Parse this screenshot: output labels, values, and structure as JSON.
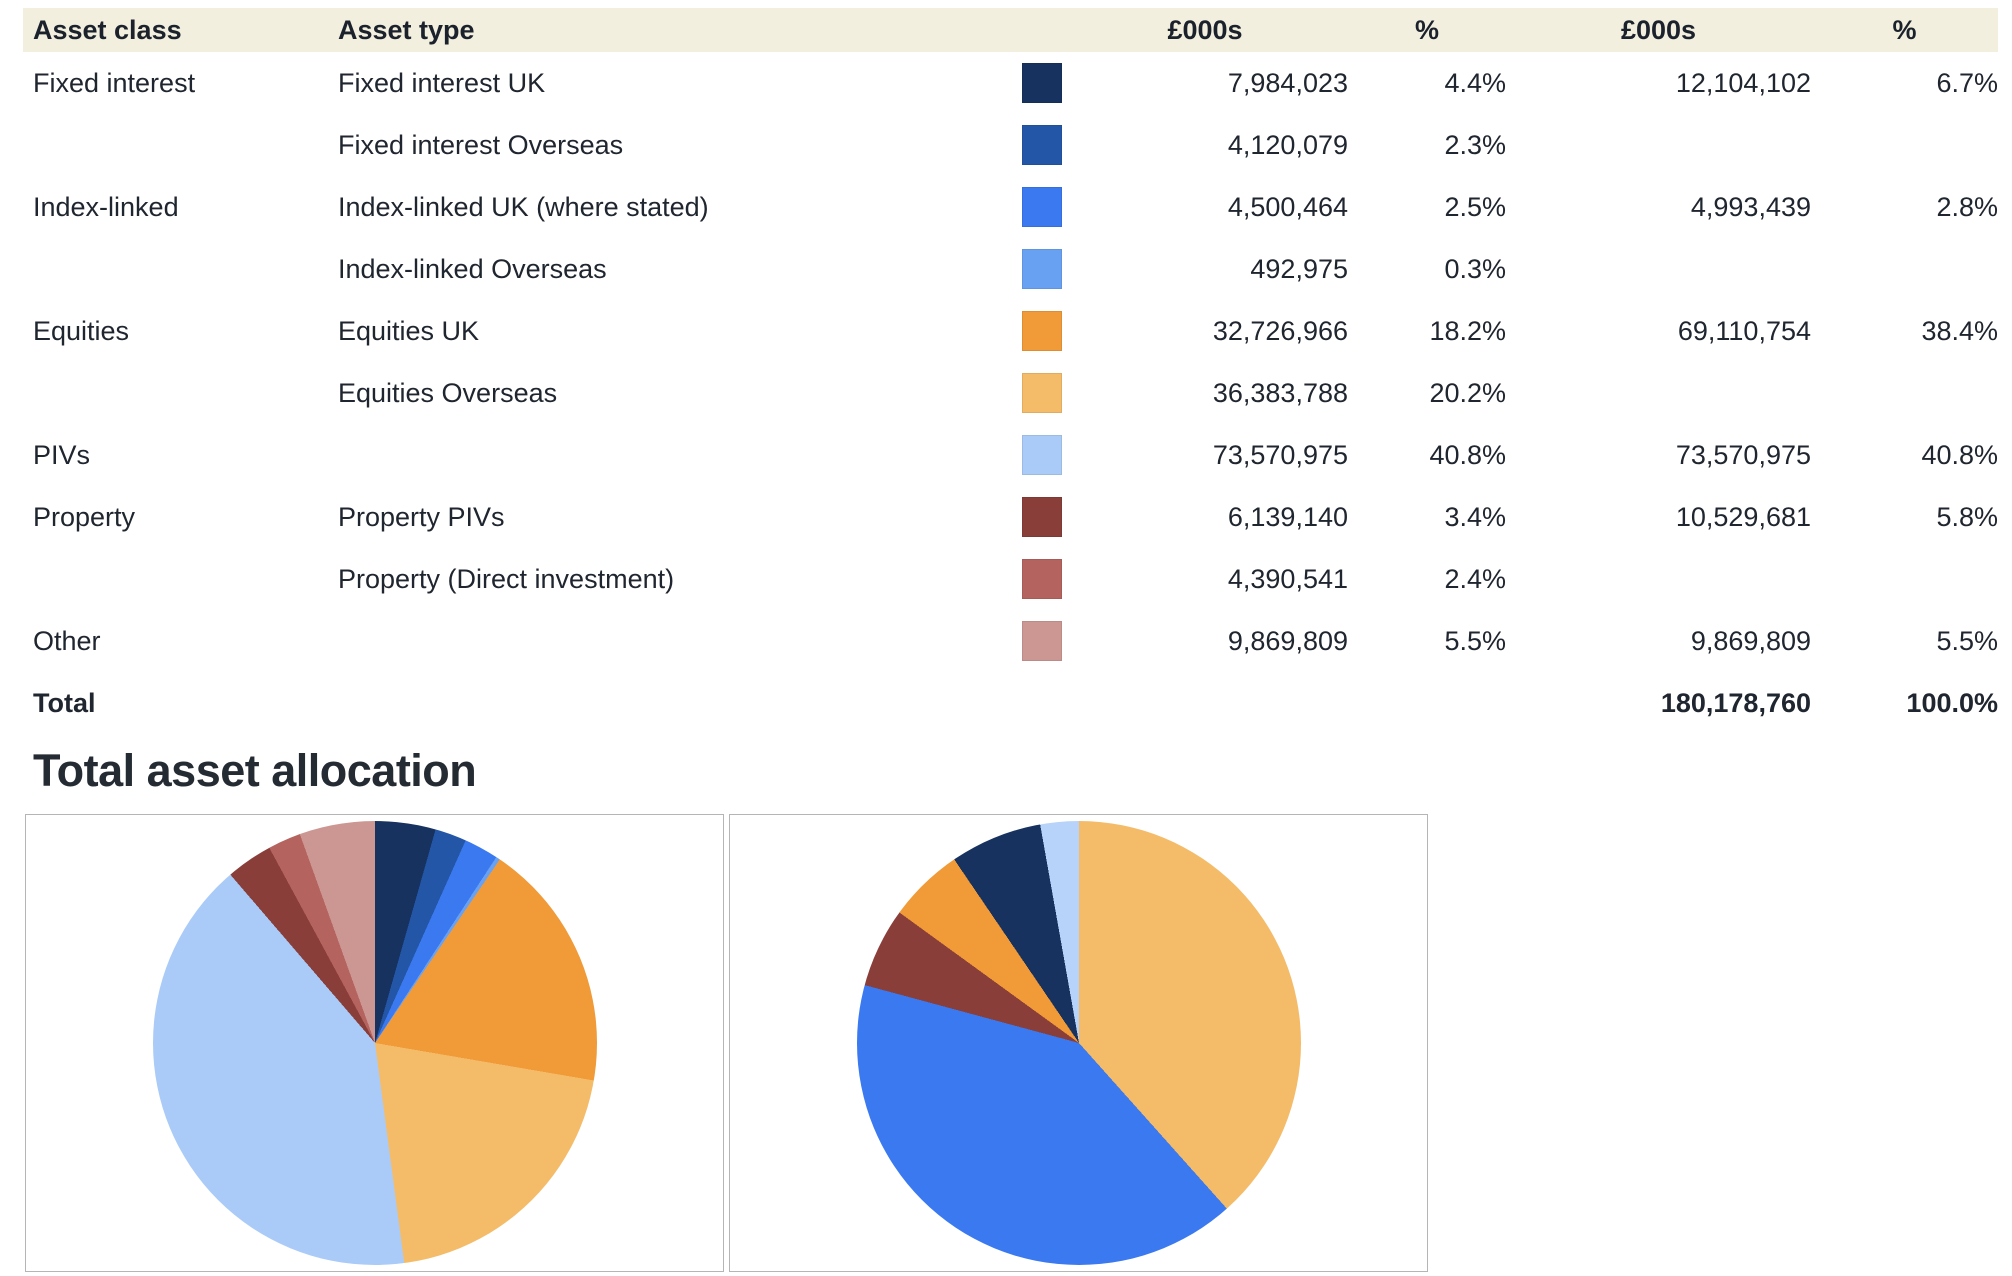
{
  "table": {
    "headers": {
      "asset_class": "Asset class",
      "asset_type": "Asset type",
      "amount": "£000s",
      "pct": "%",
      "class_amount": "£000s",
      "class_pct": "%"
    },
    "rows": [
      {
        "asset_class": "Fixed interest",
        "asset_type": "Fixed interest UK",
        "color": "#17325F",
        "amount": "7,984,023",
        "pct": "4.4%",
        "class_amount": "12,104,102",
        "class_pct": "6.7%"
      },
      {
        "asset_class": "",
        "asset_type": "Fixed interest Overseas",
        "color": "#2456A8",
        "amount": "4,120,079",
        "pct": "2.3%",
        "class_amount": "",
        "class_pct": ""
      },
      {
        "asset_class": "Index-linked",
        "asset_type": "Index-linked UK (where stated)",
        "color": "#3B79F0",
        "amount": "4,500,464",
        "pct": "2.5%",
        "class_amount": "4,993,439",
        "class_pct": "2.8%"
      },
      {
        "asset_class": "",
        "asset_type": "Index-linked Overseas",
        "color": "#69A1F2",
        "amount": "492,975",
        "pct": "0.3%",
        "class_amount": "",
        "class_pct": ""
      },
      {
        "asset_class": "Equities",
        "asset_type": "Equities UK",
        "color": "#F09A38",
        "amount": "32,726,966",
        "pct": "18.2%",
        "class_amount": "69,110,754",
        "class_pct": "38.4%"
      },
      {
        "asset_class": "",
        "asset_type": "Equities Overseas",
        "color": "#F4BC69",
        "amount": "36,383,788",
        "pct": "20.2%",
        "class_amount": "",
        "class_pct": ""
      },
      {
        "asset_class": "PIVs",
        "asset_type": "",
        "color": "#AACBF7",
        "amount": "73,570,975",
        "pct": "40.8%",
        "class_amount": "73,570,975",
        "class_pct": "40.8%"
      },
      {
        "asset_class": "Property",
        "asset_type": "Property PIVs",
        "color": "#8A3E3A",
        "amount": "6,139,140",
        "pct": "3.4%",
        "class_amount": "10,529,681",
        "class_pct": "5.8%"
      },
      {
        "asset_class": "",
        "asset_type": "Property (Direct investment)",
        "color": "#B4635E",
        "amount": "4,390,541",
        "pct": "2.4%",
        "class_amount": "",
        "class_pct": ""
      },
      {
        "asset_class": "Other",
        "asset_type": "",
        "color": "#CC9693",
        "amount": "9,869,809",
        "pct": "5.5%",
        "class_amount": "9,869,809",
        "class_pct": "5.5%"
      }
    ],
    "total": {
      "label": "Total",
      "class_amount": "180,178,760",
      "class_pct": "100.0%"
    }
  },
  "section_title": "Total asset allocation",
  "colors": {
    "header_background": "#F2EFDF",
    "text": "#20262F",
    "box_border": "#B5B5B5"
  },
  "chart_data": [
    {
      "type": "pie",
      "title": "Total asset allocation by asset type",
      "legend_position": "none",
      "start_angle_deg": 0,
      "direction": "clockwise",
      "labels": [
        "Fixed interest UK",
        "Fixed interest Overseas",
        "Index-linked UK (where stated)",
        "Index-linked Overseas",
        "Equities UK",
        "Equities Overseas",
        "PIVs",
        "Property PIVs",
        "Property (Direct investment)",
        "Other"
      ],
      "values": [
        4.4,
        2.3,
        2.5,
        0.3,
        18.2,
        20.2,
        40.8,
        3.4,
        2.4,
        5.5
      ],
      "amounts_thousands": [
        7984023,
        4120079,
        4500464,
        492975,
        32726966,
        36383788,
        73570975,
        6139140,
        4390541,
        9869809
      ],
      "colors": [
        "#17325F",
        "#2456A8",
        "#3B79F0",
        "#69A1F2",
        "#F09A38",
        "#F4BC69",
        "#AACBF7",
        "#8A3E3A",
        "#B4635E",
        "#CC9693"
      ]
    },
    {
      "type": "pie",
      "title": "Total asset allocation by asset class",
      "legend_position": "none",
      "start_angle_deg": 0,
      "direction": "clockwise",
      "labels": [
        "Equities",
        "PIVs",
        "Property",
        "Other",
        "Fixed interest",
        "Index-linked"
      ],
      "values": [
        38.4,
        40.8,
        5.8,
        5.5,
        6.7,
        2.8
      ],
      "amounts_thousands": [
        69110754,
        73570975,
        10529681,
        9869809,
        12104102,
        4993439
      ],
      "colors": [
        "#F4BC69",
        "#3B79F0",
        "#8A3E3A",
        "#F09A38",
        "#17325F",
        "#B7D3F9"
      ]
    }
  ]
}
